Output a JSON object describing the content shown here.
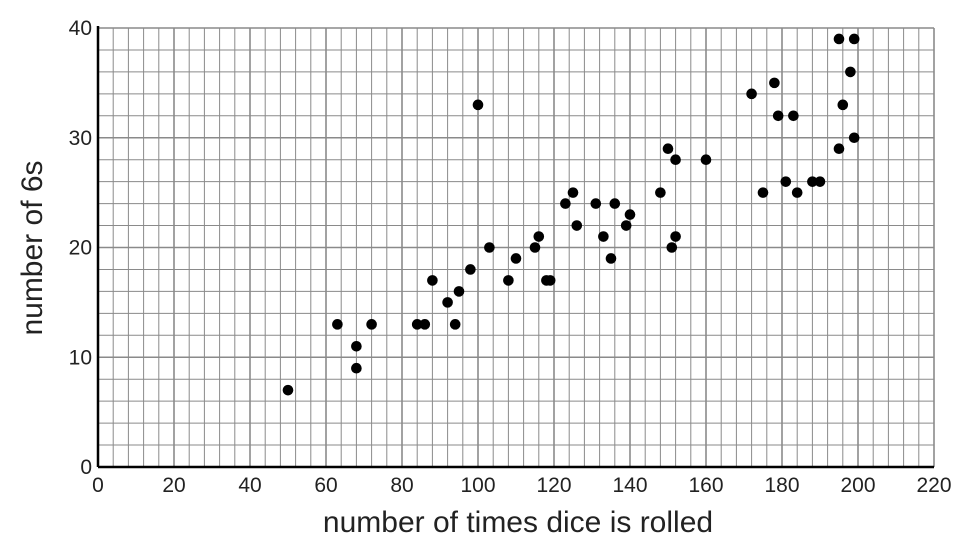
{
  "chart_data": {
    "type": "scatter",
    "title": "",
    "xlabel": "number of times dice is rolled",
    "ylabel": "number of 6s",
    "xlim": [
      0,
      220
    ],
    "ylim": [
      0,
      40
    ],
    "x_ticks": [
      0,
      20,
      40,
      60,
      80,
      100,
      120,
      140,
      160,
      180,
      200,
      220
    ],
    "y_ticks": [
      0,
      10,
      20,
      30,
      40
    ],
    "x_tick_labels": [
      "0",
      "20",
      "40",
      "60",
      "80",
      "100",
      "120",
      "140",
      "160",
      "180",
      "200",
      "220"
    ],
    "y_tick_labels": [
      "0",
      "10",
      "20",
      "30",
      "40"
    ],
    "grid": true,
    "minor_grid_step": {
      "x": 4,
      "y": 2
    },
    "marker_color": "#000000",
    "grid_color": "#8a8a8a",
    "points": [
      {
        "x": 50,
        "y": 7
      },
      {
        "x": 63,
        "y": 13
      },
      {
        "x": 68,
        "y": 11
      },
      {
        "x": 68,
        "y": 9
      },
      {
        "x": 72,
        "y": 13
      },
      {
        "x": 84,
        "y": 13
      },
      {
        "x": 86,
        "y": 13
      },
      {
        "x": 88,
        "y": 17
      },
      {
        "x": 92,
        "y": 15
      },
      {
        "x": 94,
        "y": 13
      },
      {
        "x": 95,
        "y": 16
      },
      {
        "x": 98,
        "y": 18
      },
      {
        "x": 100,
        "y": 33
      },
      {
        "x": 103,
        "y": 20
      },
      {
        "x": 108,
        "y": 17
      },
      {
        "x": 110,
        "y": 19
      },
      {
        "x": 115,
        "y": 20
      },
      {
        "x": 116,
        "y": 21
      },
      {
        "x": 118,
        "y": 17
      },
      {
        "x": 119,
        "y": 17
      },
      {
        "x": 123,
        "y": 24
      },
      {
        "x": 125,
        "y": 25
      },
      {
        "x": 126,
        "y": 22
      },
      {
        "x": 131,
        "y": 24
      },
      {
        "x": 133,
        "y": 21
      },
      {
        "x": 135,
        "y": 19
      },
      {
        "x": 136,
        "y": 24
      },
      {
        "x": 139,
        "y": 22
      },
      {
        "x": 140,
        "y": 23
      },
      {
        "x": 148,
        "y": 25
      },
      {
        "x": 150,
        "y": 29
      },
      {
        "x": 151,
        "y": 20
      },
      {
        "x": 152,
        "y": 28
      },
      {
        "x": 152,
        "y": 21
      },
      {
        "x": 160,
        "y": 28
      },
      {
        "x": 172,
        "y": 34
      },
      {
        "x": 175,
        "y": 25
      },
      {
        "x": 178,
        "y": 35
      },
      {
        "x": 179,
        "y": 32
      },
      {
        "x": 181,
        "y": 26
      },
      {
        "x": 183,
        "y": 32
      },
      {
        "x": 184,
        "y": 25
      },
      {
        "x": 188,
        "y": 26
      },
      {
        "x": 190,
        "y": 26
      },
      {
        "x": 195,
        "y": 39
      },
      {
        "x": 195,
        "y": 29
      },
      {
        "x": 196,
        "y": 33
      },
      {
        "x": 198,
        "y": 36
      },
      {
        "x": 199,
        "y": 39
      },
      {
        "x": 199,
        "y": 30
      }
    ]
  }
}
